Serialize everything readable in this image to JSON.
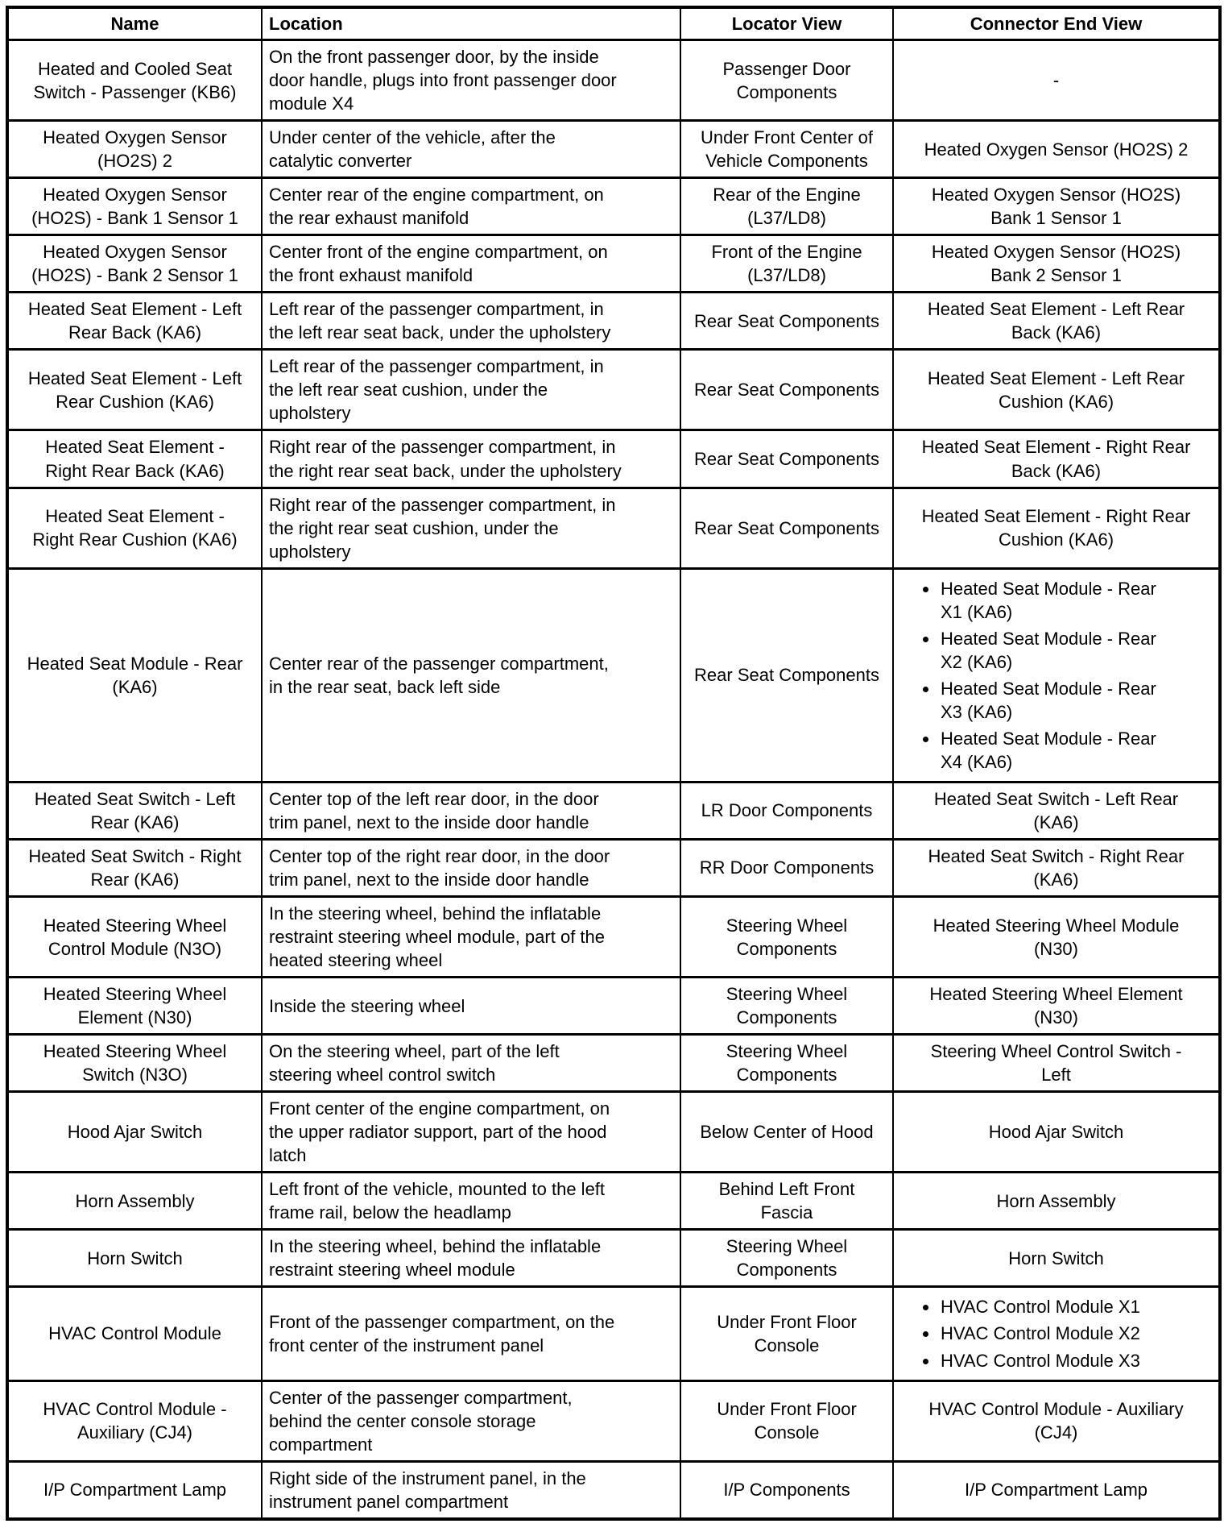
{
  "page": {
    "background": "#ffffff",
    "text_color": "#000000",
    "border_color": "#000000"
  },
  "table": {
    "columns": [
      {
        "label": "Name"
      },
      {
        "label": "Location"
      },
      {
        "label": "Locator View"
      },
      {
        "label": "Connector End View"
      }
    ],
    "rows": [
      {
        "name": "Heated and Cooled Seat\nSwitch - Passenger (KB6)",
        "location": "On the front passenger door, by the inside\ndoor handle, plugs into front passenger door\nmodule X4",
        "locator_view": "Passenger Door\nComponents",
        "connector_end_view": "-"
      },
      {
        "name": "Heated Oxygen Sensor\n(HO2S) 2",
        "location": "Under center of the vehicle, after the\ncatalytic converter",
        "locator_view": "Under Front Center of\nVehicle Components",
        "connector_end_view": "Heated Oxygen Sensor (HO2S) 2"
      },
      {
        "name": "Heated Oxygen Sensor\n(HO2S) - Bank 1 Sensor 1",
        "location": "Center rear of the engine compartment, on\nthe rear exhaust manifold",
        "locator_view": "Rear of the Engine\n(L37/LD8)",
        "connector_end_view": "Heated Oxygen Sensor (HO2S)\nBank 1 Sensor 1"
      },
      {
        "name": "Heated Oxygen Sensor\n(HO2S) - Bank 2 Sensor 1",
        "location": "Center front of the engine compartment, on\nthe front exhaust manifold",
        "locator_view": "Front of the Engine\n(L37/LD8)",
        "connector_end_view": "Heated Oxygen Sensor (HO2S)\nBank 2 Sensor 1"
      },
      {
        "name": "Heated Seat Element - Left\nRear Back (KA6)",
        "location": "Left rear of the passenger compartment, in\nthe left rear seat back, under the upholstery",
        "locator_view": "Rear Seat Components",
        "connector_end_view": "Heated Seat Element - Left Rear\nBack (KA6)"
      },
      {
        "name": "Heated Seat Element - Left\nRear Cushion (KA6)",
        "location": "Left rear of the passenger compartment, in\nthe left rear seat cushion, under the\nupholstery",
        "locator_view": "Rear Seat Components",
        "connector_end_view": "Heated Seat Element - Left Rear\nCushion (KA6)"
      },
      {
        "name": "Heated Seat Element -\nRight Rear Back (KA6)",
        "location": "Right rear of the passenger compartment, in\nthe right rear seat back, under the upholstery",
        "locator_view": "Rear Seat Components",
        "connector_end_view": "Heated Seat Element - Right Rear\nBack (KA6)"
      },
      {
        "name": "Heated Seat Element -\nRight Rear Cushion (KA6)",
        "location": "Right rear of the passenger compartment, in\nthe right rear seat cushion, under the\nupholstery",
        "locator_view": "Rear Seat Components",
        "connector_end_view": "Heated Seat Element - Right Rear\nCushion (KA6)"
      },
      {
        "name": "Heated Seat Module - Rear\n(KA6)",
        "location": "Center rear of the passenger compartment,\nin the rear seat, back left side",
        "locator_view": "Rear Seat Components",
        "connector_end_view_list": [
          "Heated Seat Module - Rear\nX1 (KA6)",
          "Heated Seat Module - Rear\nX2 (KA6)",
          "Heated Seat Module - Rear\nX3 (KA6)",
          "Heated Seat Module - Rear\nX4 (KA6)"
        ]
      },
      {
        "name": "Heated Seat Switch - Left\nRear (KA6)",
        "location": "Center top of the left rear door, in the door\ntrim panel, next to the inside door handle",
        "locator_view": "LR Door Components",
        "connector_end_view": "Heated Seat Switch - Left Rear\n(KA6)"
      },
      {
        "name": "Heated Seat Switch - Right\nRear (KA6)",
        "location": "Center top of the right rear door, in the door\ntrim panel, next to the inside door handle",
        "locator_view": "RR Door Components",
        "connector_end_view": "Heated Seat Switch - Right Rear\n(KA6)"
      },
      {
        "name": "Heated Steering Wheel\nControl Module (N3O)",
        "location": "In the steering wheel, behind the inflatable\nrestraint steering wheel module, part of the\nheated steering wheel",
        "locator_view": "Steering Wheel\nComponents",
        "connector_end_view": "Heated Steering Wheel Module\n(N30)"
      },
      {
        "name": "Heated Steering Wheel\nElement (N30)",
        "location": "Inside the steering wheel",
        "locator_view": "Steering Wheel\nComponents",
        "connector_end_view": "Heated Steering Wheel Element\n(N30)"
      },
      {
        "name": "Heated Steering Wheel\nSwitch (N3O)",
        "location": "On the steering wheel, part of the left\nsteering wheel control switch",
        "locator_view": "Steering Wheel\nComponents",
        "connector_end_view": "Steering Wheel Control Switch -\nLeft"
      },
      {
        "name": "Hood Ajar Switch",
        "location": "Front center of the engine compartment, on\nthe upper radiator support, part of the hood\nlatch",
        "locator_view": "Below Center of Hood",
        "connector_end_view": "Hood Ajar Switch"
      },
      {
        "name": "Horn Assembly",
        "location": "Left front of the vehicle, mounted to the left\nframe rail, below the headlamp",
        "locator_view": "Behind Left Front\nFascia",
        "connector_end_view": "Horn Assembly"
      },
      {
        "name": "Horn Switch",
        "location": "In the steering wheel, behind the inflatable\nrestraint steering wheel module",
        "locator_view": "Steering Wheel\nComponents",
        "connector_end_view": "Horn Switch"
      },
      {
        "name": "HVAC Control Module",
        "location": "Front of the passenger compartment, on the\nfront center of the instrument panel",
        "locator_view": "Under Front Floor\nConsole",
        "connector_end_view_list": [
          "HVAC Control Module X1",
          "HVAC Control Module X2",
          "HVAC Control Module X3"
        ]
      },
      {
        "name": "HVAC Control Module -\nAuxiliary (CJ4)",
        "location": "Center of the passenger compartment,\nbehind the center console storage\ncompartment",
        "locator_view": "Under Front Floor\nConsole",
        "connector_end_view": "HVAC Control Module - Auxiliary\n(CJ4)"
      },
      {
        "name": "I/P Compartment Lamp",
        "location": "Right side of the instrument panel, in the\ninstrument panel compartment",
        "locator_view": "I/P Components",
        "connector_end_view": "I/P Compartment Lamp"
      }
    ]
  }
}
